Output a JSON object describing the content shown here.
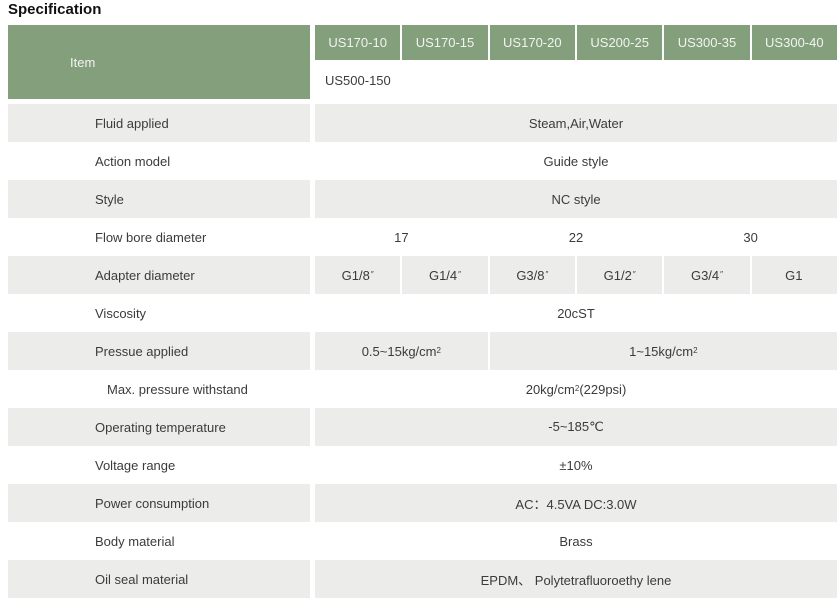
{
  "page_title": "Specification",
  "colors": {
    "header_green": "#839f7c",
    "row_gray": "#ececea",
    "row_white": "#ffffff",
    "text_dark": "#3b3b3b",
    "header_text": "#f2f4f0"
  },
  "header": {
    "item_label": "Item",
    "models": [
      "US170-10",
      "US170-15",
      "US170-20",
      "US200-25",
      "US300-35",
      "US300-40"
    ],
    "secondary_model": "US500-150"
  },
  "rows": {
    "fluid": {
      "label": "Fluid applied",
      "value": "Steam,Air,Water"
    },
    "action": {
      "label": "Action model",
      "value": "Guide style"
    },
    "style": {
      "label": "Style",
      "value": "NC style"
    },
    "flow": {
      "label": "Flow bore diameter",
      "values": [
        "17",
        "22",
        "30"
      ]
    },
    "adapter": {
      "label": "Adapter diameter",
      "values": [
        {
          "text": "G1/8",
          "sup": "″"
        },
        {
          "text": "G1/4",
          "sup": "″"
        },
        {
          "text": "G3/8",
          "sup": "″"
        },
        {
          "text": "G1/2",
          "sup": "″"
        },
        {
          "text": "G3/4",
          "sup": "″"
        },
        {
          "text": "G1",
          "sup": ""
        }
      ]
    },
    "viscosity": {
      "label": "Viscosity",
      "value": "20cST"
    },
    "pressure": {
      "label": "Pressue applied",
      "values": [
        {
          "text": "0.5~15kg/cm",
          "sup": "2"
        },
        {
          "text": "1~15kg/cm",
          "sup": "2"
        }
      ]
    },
    "max_pressure": {
      "label": "Max. pressure withstand",
      "value_pre": "20kg/cm",
      "value_sup": "2",
      "value_post": "(229psi)"
    },
    "temperature": {
      "label": "Operating temperature",
      "value": "-5~185℃"
    },
    "voltage": {
      "label": "Voltage range",
      "value": "±10%"
    },
    "power": {
      "label": "Power consumption",
      "value": "AC：4.5VA DC:3.0W"
    },
    "body": {
      "label": "Body material",
      "value": "Brass"
    },
    "oil_seal": {
      "label": "Oil seal material",
      "value": "EPDM、 Polytetrafluoroethy lene"
    }
  }
}
